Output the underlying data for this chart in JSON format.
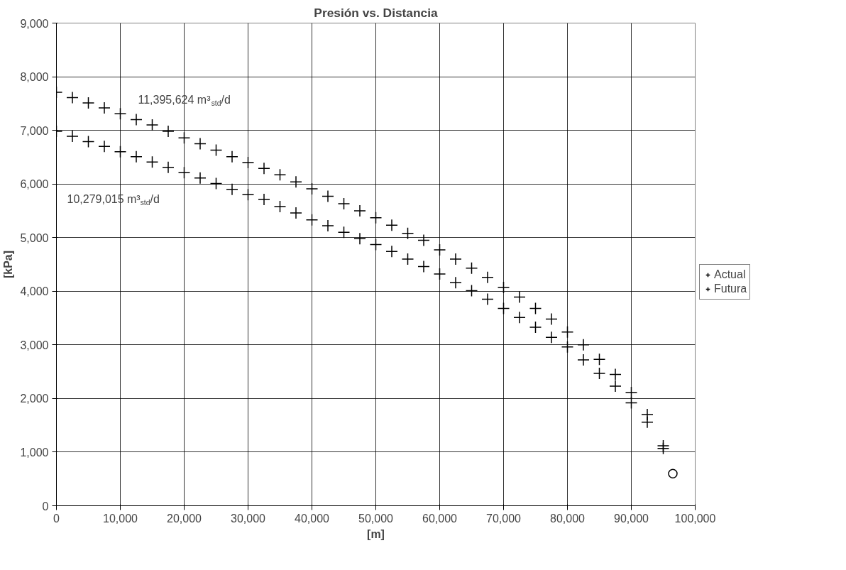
{
  "chart_data": {
    "type": "scatter",
    "title": "Presión vs. Distancia",
    "xlabel": "[m]",
    "ylabel": "[kPa]",
    "x": [
      0,
      2500,
      5000,
      7500,
      10000,
      12500,
      15000,
      17500,
      20000,
      22500,
      25000,
      27500,
      30000,
      32500,
      35000,
      37500,
      40000,
      42500,
      45000,
      47500,
      50000,
      52500,
      55000,
      57500,
      60000,
      62500,
      65000,
      67500,
      70000,
      72500,
      75000,
      77500,
      80000,
      82500,
      85000,
      87500,
      90000,
      92500,
      95000
    ],
    "series": [
      {
        "name": "Actual",
        "color": "#000000",
        "values": [
          6980,
          6890,
          6790,
          6700,
          6600,
          6510,
          6410,
          6310,
          6210,
          6110,
          6010,
          5900,
          5800,
          5710,
          5580,
          5460,
          5330,
          5220,
          5100,
          4980,
          4870,
          4740,
          4600,
          4460,
          4320,
          4160,
          4010,
          3850,
          3680,
          3510,
          3330,
          3140,
          2960,
          2720,
          2470,
          2230,
          1920,
          1560,
          1070
        ]
      },
      {
        "name": "Futura",
        "color": "#000000",
        "values": [
          7710,
          7610,
          7510,
          7420,
          7310,
          7200,
          7100,
          6980,
          6860,
          6750,
          6630,
          6510,
          6400,
          6290,
          6170,
          6040,
          5910,
          5770,
          5630,
          5500,
          5370,
          5230,
          5080,
          4950,
          4770,
          4600,
          4430,
          4260,
          4070,
          3890,
          3680,
          3480,
          3240,
          3000,
          2730,
          2450,
          2110,
          1700,
          1120
        ]
      },
      {
        "color": "#000000",
        "marker": "circle",
        "x": [
          96500
        ],
        "values": [
          600
        ]
      }
    ],
    "marker": "cross",
    "xlim": [
      0,
      100000
    ],
    "ylim": [
      0,
      9000
    ],
    "xticks": [
      {
        "value": 0,
        "label": "0"
      },
      {
        "value": 10000,
        "label": "10,000"
      },
      {
        "value": 20000,
        "label": "20,000"
      },
      {
        "value": 30000,
        "label": "30,000"
      },
      {
        "value": 40000,
        "label": "40,000"
      },
      {
        "value": 50000,
        "label": "50,000"
      },
      {
        "value": 60000,
        "label": "60,000"
      },
      {
        "value": 70000,
        "label": "70,000"
      },
      {
        "value": 80000,
        "label": "80,000"
      },
      {
        "value": 90000,
        "label": "90,000"
      },
      {
        "value": 100000,
        "label": "100,000"
      }
    ],
    "yticks": [
      0,
      {
        "value": 1000,
        "label": "1,000"
      },
      {
        "value": 2000,
        "label": "2,000"
      },
      {
        "value": 3000,
        "label": "3,000"
      },
      {
        "value": 4000,
        "label": "4,000"
      },
      {
        "value": 5000,
        "label": "5,000"
      },
      {
        "value": 6000,
        "label": "6,000"
      },
      {
        "value": 7000,
        "label": "7,000"
      },
      {
        "value": 8000,
        "label": "8,000"
      },
      {
        "value": 9000,
        "label": "9,000"
      }
    ],
    "grid": true,
    "legend": "right",
    "annotations": [
      "11,395,624 m³$_{std}$/d",
      "10,279,015 m³$_{std}$/d"
    ]
  }
}
